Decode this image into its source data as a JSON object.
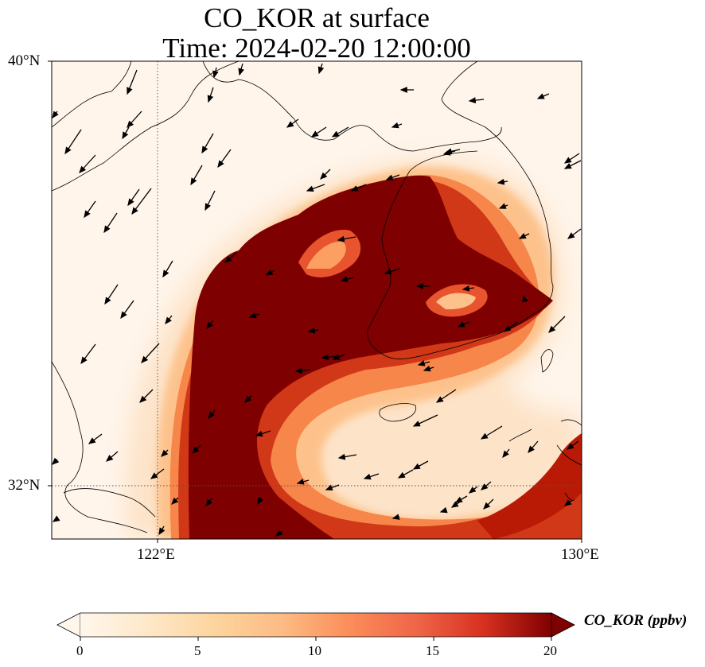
{
  "title": {
    "line1": "CO_KOR at surface",
    "line2": "Time: 2024-02-20 12:00:00"
  },
  "map": {
    "lat_ticks": [
      "40°N",
      "32°N"
    ],
    "lon_ticks": [
      "122°E",
      "130°E"
    ],
    "lon_range": [
      120,
      130
    ],
    "lat_range": [
      31,
      40
    ],
    "gridlines": "dotted",
    "field_colors": [
      "#fff5eb",
      "#fdd4a8",
      "#fb9f63",
      "#e8542d",
      "#b81a05",
      "#7f0000"
    ],
    "vector_field": "wind-arrows"
  },
  "colorbar": {
    "label": "CO_KOR (ppbv)",
    "ticks": [
      "0",
      "5",
      "10",
      "15",
      "20"
    ],
    "range": [
      0,
      20
    ],
    "extend": "both",
    "colormap": "OrRd"
  }
}
